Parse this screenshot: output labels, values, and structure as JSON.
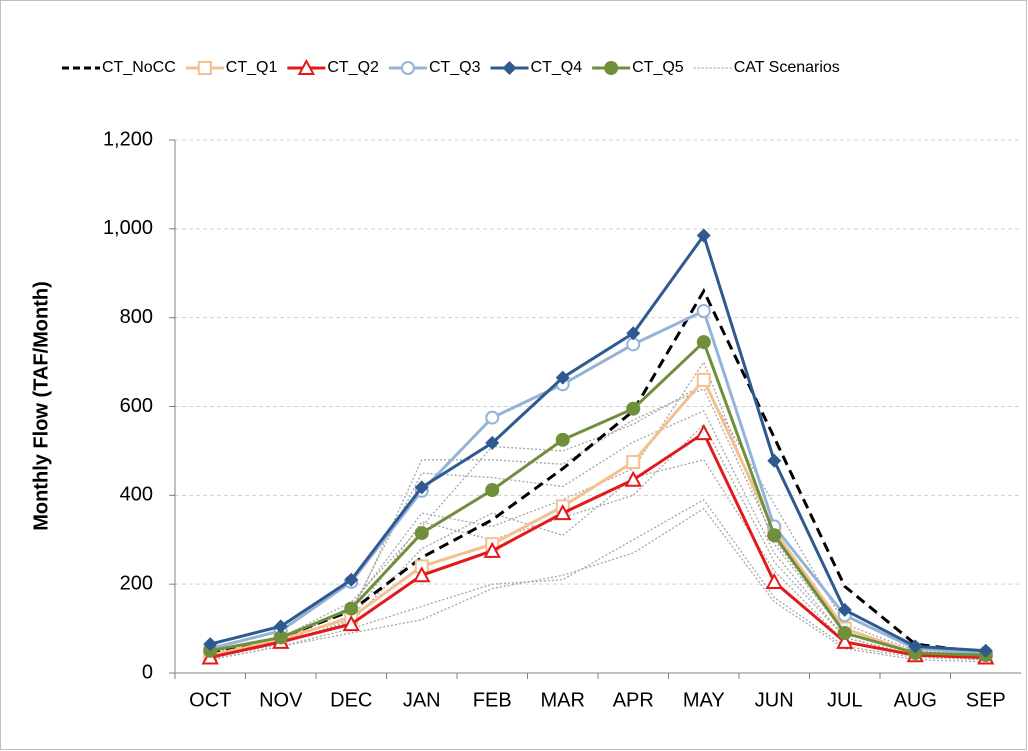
{
  "chart_data": {
    "type": "line",
    "y_label": "Monthly Flow (TAF/Month)",
    "categories": [
      "OCT",
      "NOV",
      "DEC",
      "JAN",
      "FEB",
      "MAR",
      "APR",
      "MAY",
      "JUN",
      "JUL",
      "AUG",
      "SEP"
    ],
    "ylim": [
      0,
      1200
    ],
    "yticks": [
      0,
      200,
      400,
      600,
      800,
      {
        "value": 1000,
        "label": "1,000"
      },
      {
        "value": 1200,
        "label": "1,200"
      }
    ],
    "grid": true,
    "legend": "top",
    "series": [
      {
        "name": "CT_NoCC",
        "color": "#000000",
        "dash": "dashed",
        "marker": "none",
        "values": [
          45,
          80,
          140,
          260,
          345,
          460,
          590,
          860,
          530,
          195,
          65,
          45
        ]
      },
      {
        "name": "CT_Q1",
        "color": "#f4c08e",
        "marker": "open-square",
        "values": [
          40,
          75,
          125,
          240,
          290,
          375,
          475,
          660,
          320,
          100,
          45,
          35
        ]
      },
      {
        "name": "CT_Q2",
        "color": "#e31a1c",
        "marker": "open-triangle",
        "values": [
          35,
          70,
          110,
          220,
          275,
          360,
          435,
          540,
          205,
          70,
          40,
          35
        ]
      },
      {
        "name": "CT_Q3",
        "color": "#95b3d7",
        "marker": "open-circle",
        "values": [
          55,
          95,
          205,
          410,
          575,
          650,
          740,
          815,
          330,
          130,
          55,
          45
        ]
      },
      {
        "name": "CT_Q4",
        "color": "#2e5a8f",
        "marker": "diamond",
        "values": [
          65,
          105,
          210,
          418,
          518,
          665,
          765,
          985,
          478,
          142,
          60,
          50
        ]
      },
      {
        "name": "CT_Q5",
        "color": "#6f8f3a",
        "marker": "circle",
        "values": [
          50,
          80,
          145,
          315,
          412,
          525,
          595,
          745,
          310,
          90,
          45,
          40
        ]
      },
      {
        "name": "CAT Scenarios",
        "color": "#a6a6a6",
        "dash": "dotted",
        "marker": "none",
        "values": [
          [
            40,
            70,
            130,
            480,
            480,
            470,
            570,
            640,
            300,
            90,
            45,
            35
          ],
          [
            40,
            75,
            140,
            450,
            440,
            420,
            520,
            590,
            270,
            80,
            40,
            30
          ],
          [
            40,
            70,
            150,
            360,
            330,
            390,
            460,
            700,
            290,
            90,
            45,
            35
          ],
          [
            35,
            65,
            120,
            340,
            300,
            350,
            400,
            560,
            250,
            80,
            40,
            30
          ],
          [
            30,
            60,
            100,
            150,
            200,
            210,
            300,
            390,
            170,
            60,
            35,
            30
          ],
          [
            30,
            60,
            90,
            120,
            190,
            220,
            270,
            370,
            160,
            55,
            30,
            25
          ],
          [
            35,
            70,
            115,
            280,
            360,
            310,
            440,
            480,
            230,
            70,
            40,
            30
          ],
          [
            45,
            80,
            160,
            330,
            510,
            500,
            560,
            650,
            380,
            110,
            50,
            40
          ]
        ]
      }
    ]
  }
}
